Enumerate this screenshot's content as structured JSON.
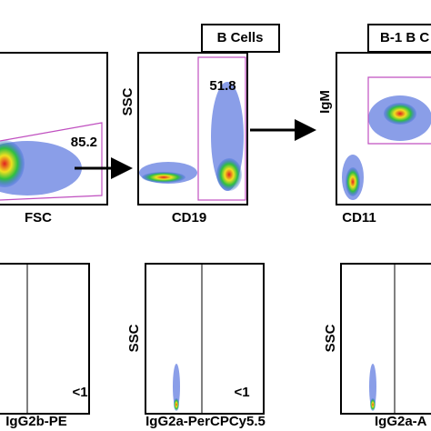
{
  "top_row": {
    "panels": [
      {
        "x_label": "FSC",
        "gate_value": "85.2"
      },
      {
        "header": "B Cells",
        "y_label": "SSC",
        "x_label": "CD19",
        "gate_value": "51.8"
      },
      {
        "header": "B-1 B C",
        "y_label": "IgM",
        "x_label": "CD11"
      }
    ]
  },
  "bottom_row": {
    "panels": [
      {
        "x_label": "IgG2b-PE",
        "gate_value": "<1"
      },
      {
        "y_label": "SSC",
        "x_label": "IgG2a-PerCPCy5.5",
        "gate_value": "<1"
      },
      {
        "y_label": "SSC",
        "x_label": "IgG2a-A"
      }
    ]
  }
}
